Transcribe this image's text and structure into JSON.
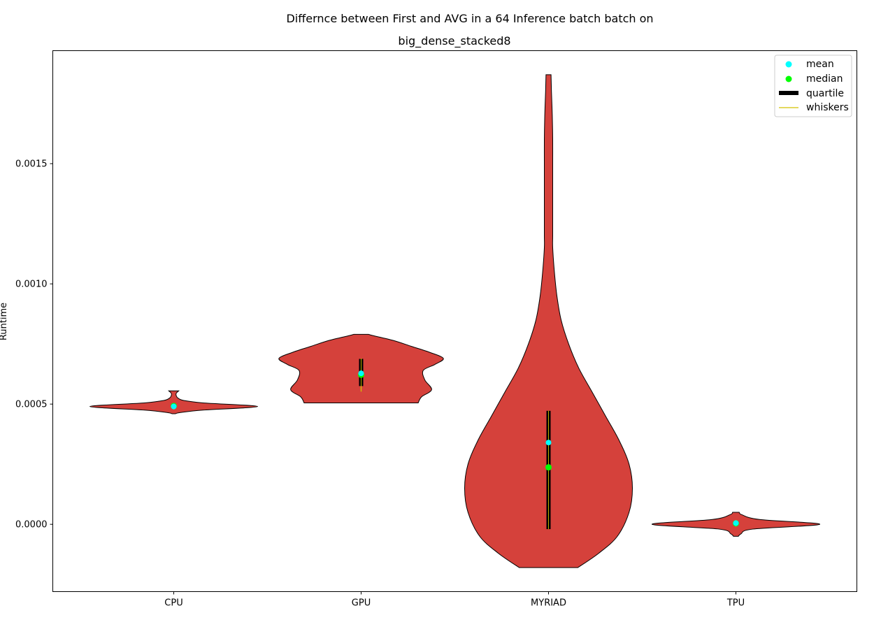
{
  "chart_data": {
    "type": "violin",
    "title_line1": "Differnce between First and AVG in a 64 Inference batch batch on",
    "title_line2": "big_dense_stacked8",
    "xlabel": "",
    "ylabel": "Runtime",
    "ylim": [
      -0.00028,
      0.00197
    ],
    "yticks": [
      "0.0000",
      "0.0005",
      "0.0010",
      "0.0015"
    ],
    "ytick_values": [
      0.0,
      0.0005,
      0.001,
      0.0015
    ],
    "categories": [
      "CPU",
      "GPU",
      "MYRIAD",
      "TPU"
    ],
    "colors": {
      "violin_fill": "#d5413b",
      "violin_edge": "#000000",
      "mean": "#00ffff",
      "median": "#00ff00",
      "quartile": "#000000",
      "whiskers": "#d4c200"
    },
    "legend": {
      "placement": "top-right",
      "entries": [
        "mean",
        "median",
        "quartile",
        "whiskers"
      ]
    },
    "violins": [
      {
        "category": "CPU",
        "mean": 0.00049,
        "median": 0.000492,
        "q1": 0.000485,
        "q3": 0.000497,
        "whisker_low": 0.000478,
        "whisker_high": 0.000503,
        "profile": [
          [
            0.00046,
            0.02
          ],
          [
            0.000465,
            0.08
          ],
          [
            0.000475,
            0.35
          ],
          [
            0.00049,
            1.0
          ],
          [
            0.000505,
            0.35
          ],
          [
            0.000515,
            0.12
          ],
          [
            0.000525,
            0.05
          ],
          [
            0.000535,
            0.03
          ],
          [
            0.000545,
            0.03
          ],
          [
            0.000555,
            0.06
          ]
        ]
      },
      {
        "category": "GPU",
        "mean": 0.000628,
        "median": 0.000622,
        "q1": 0.000575,
        "q3": 0.000688,
        "whisker_low": 0.000552,
        "whisker_high": 0.00069,
        "profile": [
          [
            0.000505,
            0.68
          ],
          [
            0.00053,
            0.72
          ],
          [
            0.00056,
            0.84
          ],
          [
            0.0006,
            0.76
          ],
          [
            0.00064,
            0.74
          ],
          [
            0.000665,
            0.88
          ],
          [
            0.00069,
            0.98
          ],
          [
            0.000715,
            0.82
          ],
          [
            0.00074,
            0.6
          ],
          [
            0.000765,
            0.38
          ],
          [
            0.000785,
            0.14
          ],
          [
            0.00079,
            0.09
          ]
        ]
      },
      {
        "category": "MYRIAD",
        "mean": 0.00034,
        "median": 0.000237,
        "q1": -2e-05,
        "q3": 0.000472,
        "whisker_low": -2e-05,
        "whisker_high": 0.000472,
        "profile": [
          [
            -0.00018,
            0.35
          ],
          [
            -0.00012,
            0.6
          ],
          [
            -5e-05,
            0.82
          ],
          [
            5e-05,
            0.96
          ],
          [
            0.00015,
            1.0
          ],
          [
            0.00025,
            0.96
          ],
          [
            0.00035,
            0.84
          ],
          [
            0.00045,
            0.68
          ],
          [
            0.00055,
            0.52
          ],
          [
            0.00065,
            0.36
          ],
          [
            0.00075,
            0.24
          ],
          [
            0.00085,
            0.15
          ],
          [
            0.00095,
            0.1
          ],
          [
            0.00105,
            0.07
          ],
          [
            0.00115,
            0.05
          ],
          [
            0.0012,
            0.05
          ],
          [
            0.0013,
            0.05
          ],
          [
            0.0014,
            0.05
          ],
          [
            0.0015,
            0.05
          ],
          [
            0.0016,
            0.05
          ],
          [
            0.0017,
            0.045
          ],
          [
            0.0018,
            0.035
          ],
          [
            0.00187,
            0.03
          ]
        ]
      },
      {
        "category": "TPU",
        "mean": 5e-06,
        "median": 4e-06,
        "q1": -3e-06,
        "q3": 1.2e-05,
        "whisker_low": -1e-05,
        "whisker_high": 1.8e-05,
        "profile": [
          [
            -5e-05,
            0.03
          ],
          [
            -4e-05,
            0.06
          ],
          [
            -2e-05,
            0.2
          ],
          [
            0.0,
            1.0
          ],
          [
            2e-05,
            0.28
          ],
          [
            4e-05,
            0.07
          ],
          [
            5e-05,
            0.04
          ]
        ]
      }
    ]
  }
}
